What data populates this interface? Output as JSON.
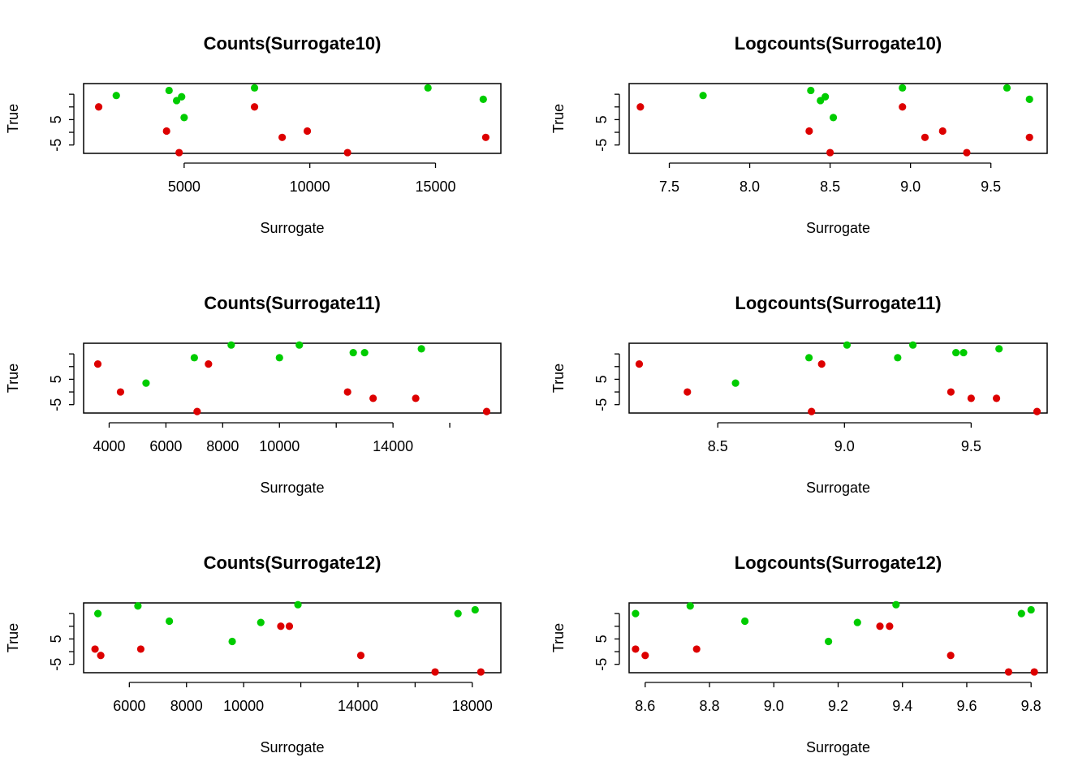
{
  "chart_data": [
    {
      "type": "scatter",
      "title": "Counts(Surrogate10)",
      "xlabel": "Surrogate",
      "ylabel": "True",
      "x_ticks": [
        "5000",
        "10000",
        "15000"
      ],
      "y_ticks": [
        "5",
        "-5"
      ],
      "xlim": [
        1000,
        17600
      ],
      "ylim": [
        -8.3,
        19.2
      ],
      "series": [
        {
          "color": "#00CC00",
          "x": [
            2300,
            4400,
            4700,
            4900,
            5000,
            7800,
            14700,
            16900
          ],
          "y": [
            14.5,
            16.5,
            12.5,
            14,
            5.8,
            17.5,
            17.5,
            13
          ]
        },
        {
          "color": "#DD0000",
          "x": [
            1600,
            4300,
            4800,
            7800,
            8900,
            9900,
            11500,
            17000
          ],
          "y": [
            10,
            0.5,
            -8,
            10,
            -2,
            0.5,
            -8,
            -2
          ]
        }
      ]
    },
    {
      "type": "scatter",
      "title": "Logcounts(Surrogate10)",
      "xlabel": "Surrogate",
      "ylabel": "True",
      "x_ticks": [
        "7.5",
        "8.0",
        "8.5",
        "9.0",
        "9.5"
      ],
      "y_ticks": [
        "5",
        "-5"
      ],
      "xlim": [
        7.25,
        9.85
      ],
      "ylim": [
        -8.3,
        19.2
      ],
      "series": [
        {
          "color": "#00CC00",
          "x": [
            7.71,
            8.38,
            8.44,
            8.47,
            8.52,
            8.95,
            9.6,
            9.74
          ],
          "y": [
            14.5,
            16.5,
            12.5,
            14,
            5.8,
            17.5,
            17.5,
            13
          ]
        },
        {
          "color": "#DD0000",
          "x": [
            7.32,
            8.37,
            8.5,
            8.95,
            9.09,
            9.2,
            9.35,
            9.74
          ],
          "y": [
            10,
            0.5,
            -8,
            10,
            -2,
            0.5,
            -8,
            -2
          ]
        }
      ]
    },
    {
      "type": "scatter",
      "title": "Counts(Surrogate11)",
      "xlabel": "Surrogate",
      "ylabel": "True",
      "x_ticks": [
        "4000",
        "6000",
        "8000",
        "10000",
        "14000"
      ],
      "y_ticks": [
        "5",
        "-5"
      ],
      "xlim": [
        3100,
        17800
      ],
      "ylim": [
        -8.3,
        19.2
      ],
      "series": [
        {
          "color": "#00CC00",
          "x": [
            5300,
            7000,
            8300,
            10000,
            10700,
            12600,
            13000,
            15000
          ],
          "y": [
            3.5,
            13.5,
            18.5,
            13.5,
            18.5,
            15.5,
            15.5,
            17
          ]
        },
        {
          "color": "#DD0000",
          "x": [
            3600,
            4400,
            7100,
            7500,
            12400,
            13300,
            14800,
            17300
          ],
          "y": [
            11,
            0,
            -7.7,
            11,
            0,
            -2.5,
            -2.5,
            -7.7
          ]
        }
      ]
    },
    {
      "type": "scatter",
      "title": "Logcounts(Surrogate11)",
      "xlabel": "Surrogate",
      "ylabel": "True",
      "x_ticks": [
        "8.5",
        "9.0",
        "9.5"
      ],
      "y_ticks": [
        "5",
        "-5"
      ],
      "xlim": [
        8.15,
        9.8
      ],
      "ylim": [
        -8.3,
        19.2
      ],
      "series": [
        {
          "color": "#00CC00",
          "x": [
            8.57,
            8.86,
            9.01,
            9.21,
            9.27,
            9.44,
            9.47,
            9.61
          ],
          "y": [
            3.5,
            13.5,
            18.5,
            13.5,
            18.5,
            15.5,
            15.5,
            17
          ]
        },
        {
          "color": "#DD0000",
          "x": [
            8.19,
            8.38,
            8.87,
            8.91,
            9.42,
            9.5,
            9.6,
            9.76
          ],
          "y": [
            11,
            0,
            -7.7,
            11,
            0,
            -2.5,
            -2.5,
            -7.7
          ]
        }
      ]
    },
    {
      "type": "scatter",
      "title": "Counts(Surrogate12)",
      "xlabel": "Surrogate",
      "ylabel": "True",
      "x_ticks": [
        "6000",
        "8000",
        "10000",
        "14000",
        "18000"
      ],
      "y_ticks": [
        "5",
        "-5"
      ],
      "xlim": [
        4400,
        19000
      ],
      "ylim": [
        -8.3,
        19.2
      ],
      "series": [
        {
          "color": "#00CC00",
          "x": [
            4900,
            6300,
            7400,
            9600,
            10600,
            11900,
            17500,
            18100
          ],
          "y": [
            15,
            18,
            12,
            4,
            11.5,
            18.5,
            15,
            16.5
          ]
        },
        {
          "color": "#DD0000",
          "x": [
            4800,
            5000,
            6400,
            11300,
            11600,
            14100,
            16700,
            18300
          ],
          "y": [
            1,
            -1.5,
            1,
            10,
            10,
            -1.5,
            -8,
            -8
          ]
        }
      ]
    },
    {
      "type": "scatter",
      "title": "Logcounts(Surrogate12)",
      "xlabel": "Surrogate",
      "ylabel": "True",
      "x_ticks": [
        "8.6",
        "8.8",
        "9.0",
        "9.2",
        "9.4",
        "9.6",
        "9.8"
      ],
      "y_ticks": [
        "5",
        "-5"
      ],
      "xlim": [
        8.55,
        9.85
      ],
      "ylim": [
        -8.3,
        19.2
      ],
      "series": [
        {
          "color": "#00CC00",
          "x": [
            8.57,
            8.74,
            8.91,
            9.17,
            9.26,
            9.38,
            9.77,
            9.8
          ],
          "y": [
            15,
            18,
            12,
            4,
            11.5,
            18.5,
            15,
            16.5
          ]
        },
        {
          "color": "#DD0000",
          "x": [
            8.57,
            8.6,
            8.76,
            9.33,
            9.36,
            9.55,
            9.73,
            9.81
          ],
          "y": [
            1,
            -1.5,
            1,
            10,
            10,
            -1.5,
            -8,
            -8
          ]
        }
      ]
    }
  ]
}
